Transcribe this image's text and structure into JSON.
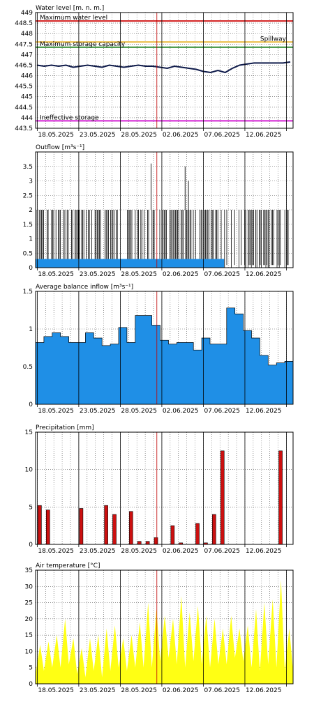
{
  "charts_meta": {
    "colors": {
      "max_level": "#d11a1a",
      "spillway": "#e8b83a",
      "max_storage": "#2f8a2f",
      "ineffective": "#d21fd2",
      "level_line": "#0e1a4a",
      "bar_blue": "#1f8fe6",
      "bar_red": "#cc1010",
      "area_yellow": "#ffff14"
    }
  },
  "chart_data": [
    {
      "type": "line",
      "title": "Water level [m. n. m.]",
      "xlabel": "",
      "ylabel": "",
      "x_ticks": [
        "18.05.2025",
        "23.05.2025",
        "28.05.2025",
        "02.06.2025",
        "07.06.2025",
        "12.06.2025"
      ],
      "ylim": [
        443.5,
        449
      ],
      "y_ticks": [
        "449",
        "448.5",
        "448",
        "447.5",
        "447",
        "446.5",
        "446",
        "445.5",
        "445",
        "444.5",
        "444",
        "443.5"
      ],
      "reference_lines": [
        {
          "name": "Maximum water level",
          "value": 448.6
        },
        {
          "name": "Spillway",
          "value": 447.6
        },
        {
          "name": "Maximum storage capacity",
          "value": 447.35
        },
        {
          "name": "Ineffective storage",
          "value": 443.85
        }
      ],
      "series": [
        {
          "x": [
            0,
            1,
            2,
            3,
            4,
            5,
            6,
            7,
            8,
            9,
            10,
            11,
            12,
            13,
            14,
            15,
            16,
            17,
            18,
            19,
            20,
            21,
            22,
            23,
            24,
            25,
            26,
            27,
            28,
            29,
            30,
            31,
            32,
            33,
            34,
            35
          ],
          "values": [
            446.5,
            446.45,
            446.5,
            446.45,
            446.5,
            446.4,
            446.45,
            446.5,
            446.45,
            446.4,
            446.5,
            446.45,
            446.4,
            446.45,
            446.5,
            446.45,
            446.45,
            446.4,
            446.35,
            446.45,
            446.4,
            446.35,
            446.3,
            446.2,
            446.15,
            446.25,
            446.15,
            446.35,
            446.5,
            446.55,
            446.6,
            446.6,
            446.6,
            446.6,
            446.6,
            446.65
          ]
        }
      ]
    },
    {
      "type": "bar",
      "title": "Outflow [m³s⁻¹]",
      "xlabel": "",
      "ylabel": "",
      "x_ticks": [
        "18.05.2025",
        "23.05.2025",
        "28.05.2025",
        "02.06.2025",
        "07.06.2025",
        "12.06.2025"
      ],
      "ylim": [
        0,
        4
      ],
      "y_ticks": [
        "0",
        "0.5",
        "1",
        "1.5",
        "2",
        "2.5",
        "3",
        "3.5"
      ],
      "base_value": 0.3,
      "base_until_day": 22.5,
      "pulse_max": 2.0,
      "spikes": [
        {
          "day": 13.7,
          "value": 3.6
        },
        {
          "day": 17.8,
          "value": 3.5
        },
        {
          "day": 18.2,
          "value": 3.0
        }
      ]
    },
    {
      "type": "bar",
      "title": "Average balance inflow [m³s⁻¹]",
      "xlabel": "",
      "ylabel": "",
      "x_ticks": [
        "18.05.2025",
        "23.05.2025",
        "28.05.2025",
        "02.06.2025",
        "07.06.2025",
        "12.06.2025"
      ],
      "ylim": [
        0,
        1.5
      ],
      "y_ticks": [
        "0",
        "0.5",
        "1",
        "1.5"
      ],
      "values": [
        0.82,
        0.9,
        0.95,
        0.9,
        0.82,
        0.82,
        0.95,
        0.88,
        0.78,
        0.8,
        1.02,
        0.82,
        1.18,
        1.18,
        1.05,
        0.85,
        0.8,
        0.82,
        0.82,
        0.72,
        0.88,
        0.8,
        0.8,
        1.28,
        1.2,
        0.98,
        0.88,
        0.65,
        0.52,
        0.55,
        0.57
      ]
    },
    {
      "type": "bar",
      "title": "Precipitation [mm]",
      "xlabel": "",
      "ylabel": "",
      "x_ticks": [
        "18.05.2025",
        "23.05.2025",
        "28.05.2025",
        "02.06.2025",
        "07.06.2025",
        "12.06.2025"
      ],
      "ylim": [
        0,
        15
      ],
      "y_ticks": [
        "0",
        "5",
        "10",
        "15"
      ],
      "values": [
        {
          "day": 0,
          "value": 5.2
        },
        {
          "day": 1,
          "value": 4.6
        },
        {
          "day": 5,
          "value": 4.8
        },
        {
          "day": 8,
          "value": 5.2
        },
        {
          "day": 9,
          "value": 4.0
        },
        {
          "day": 11,
          "value": 4.4
        },
        {
          "day": 12,
          "value": 0.4
        },
        {
          "day": 13,
          "value": 0.4
        },
        {
          "day": 14,
          "value": 0.9
        },
        {
          "day": 16,
          "value": 2.5
        },
        {
          "day": 17,
          "value": 0.2
        },
        {
          "day": 19,
          "value": 2.8
        },
        {
          "day": 20,
          "value": 0.2
        },
        {
          "day": 21,
          "value": 4.0
        },
        {
          "day": 22,
          "value": 12.5
        },
        {
          "day": 29,
          "value": 12.5
        }
      ]
    },
    {
      "type": "area",
      "title": "Air temperature [°C]",
      "xlabel": "",
      "ylabel": "",
      "x_ticks": [
        "18.05.2025",
        "23.05.2025",
        "28.05.2025",
        "02.06.2025",
        "07.06.2025",
        "12.06.2025"
      ],
      "ylim": [
        0,
        35
      ],
      "y_ticks": [
        "0",
        "5",
        "10",
        "15",
        "20",
        "25",
        "30",
        "35"
      ],
      "daily_min": [
        3,
        4,
        5,
        5,
        6,
        3,
        2,
        4,
        2,
        4,
        5,
        4,
        5,
        5,
        5,
        7,
        8,
        6,
        5,
        7,
        6,
        5,
        6,
        6,
        8,
        7,
        5,
        4,
        6,
        5,
        4
      ],
      "daily_max": [
        12,
        13,
        15,
        20,
        14,
        11,
        14,
        15,
        17,
        18,
        14,
        15,
        19,
        25,
        23,
        21,
        20,
        27,
        22,
        24,
        21,
        20,
        17,
        21,
        17,
        18,
        23,
        25,
        26,
        32,
        17
      ]
    }
  ]
}
